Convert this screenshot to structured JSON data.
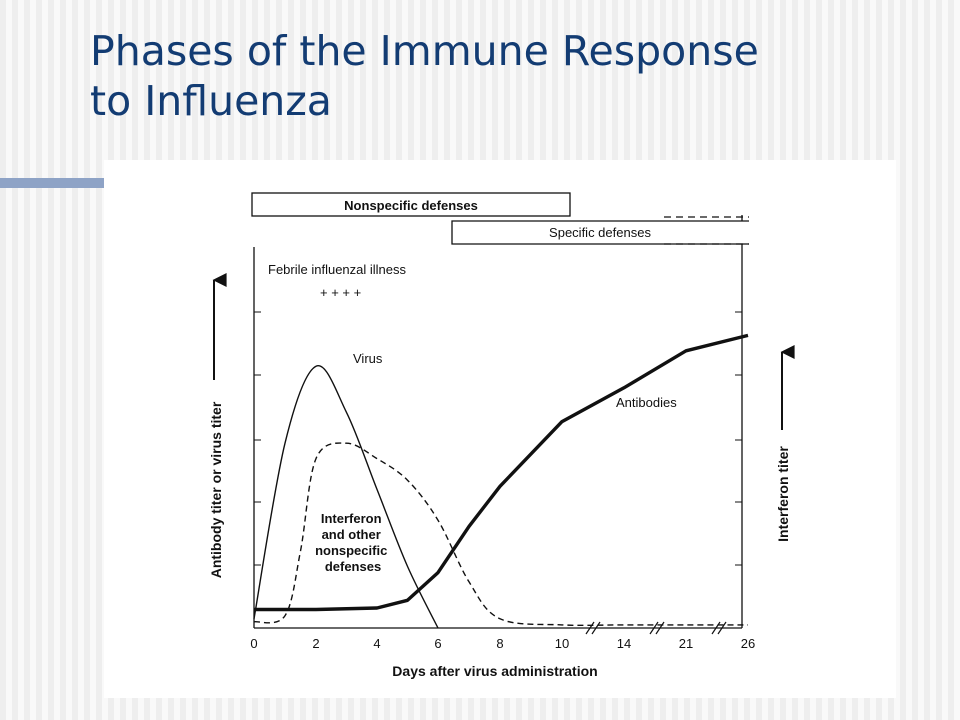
{
  "slide": {
    "title_line1": "Phases of the Immune Response",
    "title_line2": "to Influenza"
  },
  "chart_data": {
    "type": "line",
    "title": "",
    "xlabel": "Days after virus administration",
    "ylabel_left": "Antibody titer or virus titer",
    "ylabel_right": "Interferon titer",
    "x_ticks": [
      "0",
      "2",
      "4",
      "6",
      "8",
      "10",
      "14",
      "21",
      "26"
    ],
    "axis_breaks": [
      "between 10 and 14",
      "between 14 and 21",
      "between 21 and 26"
    ],
    "xlim": [
      0,
      26
    ],
    "ylim": [
      0,
      10
    ],
    "phase_bars": [
      {
        "label": "Nonspecific defenses",
        "start_day": 0,
        "end_day": 10,
        "continues": false
      },
      {
        "label": "Specific defenses",
        "start_day": 6,
        "end_day": 21,
        "continues": true
      }
    ],
    "annotations": {
      "illness_label": "Febrile influenzal illness",
      "illness_marks": "+ + + +"
    },
    "series": [
      {
        "name": "Virus",
        "style": "solid-thin",
        "x": [
          0,
          1,
          2,
          3,
          4,
          5,
          6
        ],
        "y": [
          0.3,
          6.0,
          8.5,
          7.0,
          4.5,
          2.0,
          0.0
        ]
      },
      {
        "name": "Interferon and other nonspecific defenses",
        "style": "dashed",
        "x": [
          0,
          1,
          1.5,
          2,
          3,
          4,
          5,
          6,
          7,
          8,
          10,
          14,
          21,
          26
        ],
        "y": [
          0.2,
          0.4,
          2.5,
          5.5,
          6.0,
          5.5,
          4.8,
          3.5,
          1.5,
          0.3,
          0.1,
          0.1,
          0.1,
          0.1
        ]
      },
      {
        "name": "Antibodies",
        "style": "solid-thick",
        "x": [
          0,
          2,
          4,
          5,
          6,
          7,
          8,
          10,
          14,
          21,
          26
        ],
        "y": [
          0.6,
          0.6,
          0.65,
          0.9,
          1.8,
          3.3,
          4.6,
          6.7,
          7.8,
          9.0,
          9.5
        ]
      }
    ]
  }
}
